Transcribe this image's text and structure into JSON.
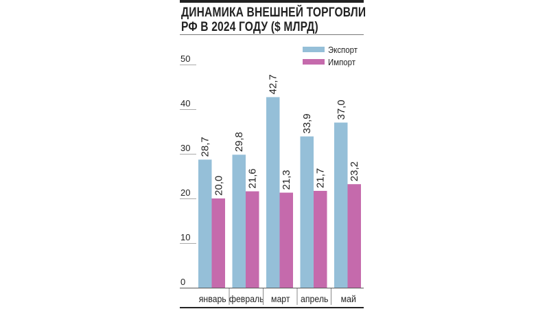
{
  "chart_data": {
    "type": "bar",
    "title_line1": "ДИНАМИКА ВНЕШНЕЙ ТОРГОВЛИ",
    "title_line2": "РФ В 2024 ГОДУ ($ МЛРД)",
    "categories": [
      "январь",
      "февраль",
      "март",
      "апрель",
      "май"
    ],
    "series": [
      {
        "name": "Экспорт",
        "color": "#95bfd8",
        "values": [
          28.7,
          29.8,
          42.7,
          33.9,
          37.0
        ],
        "labels": [
          "28,7",
          "29,8",
          "42,7",
          "33,9",
          "37,0"
        ]
      },
      {
        "name": "Импорт",
        "color": "#c56aac",
        "values": [
          20.0,
          21.6,
          21.3,
          21.7,
          23.2
        ],
        "labels": [
          "20,0",
          "21,6",
          "21,3",
          "21,7",
          "23,2"
        ]
      }
    ],
    "yticks": [
      "0",
      "10",
      "20",
      "30",
      "40",
      "50"
    ],
    "ylim": [
      0,
      50
    ],
    "grid": false,
    "legend": "top-right",
    "xlabel": "",
    "ylabel": ""
  }
}
